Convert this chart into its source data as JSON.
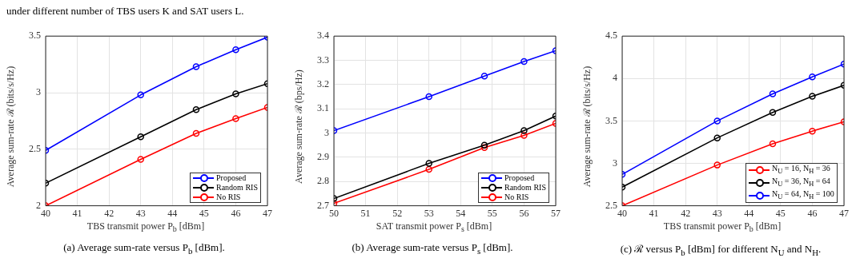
{
  "chart_data": [
    {
      "type": "line",
      "title": "(a) Average sum-rate versus P$_{b}$ [dBm].",
      "xlabel": "TBS transmit power P$_{b}$ [dBm]",
      "ylabel": "Average sum-rate ℛ (bits/s/Hz)",
      "annotations": [
        "under different number of TBS users K and SAT users L."
      ],
      "x": [
        40,
        43,
        44.75,
        46,
        47
      ],
      "xlim": [
        40,
        47
      ],
      "xticks": [
        40,
        41,
        42,
        43,
        44,
        45,
        46,
        47
      ],
      "ylim": [
        2,
        3.5
      ],
      "yticks": [
        2,
        2.5,
        3,
        3.5
      ],
      "grid": true,
      "legend": "bottom right",
      "marker": "circle",
      "line_style": "solid",
      "series": [
        {
          "name": "Proposed",
          "color": "#0000ff",
          "values": [
            2.49,
            2.98,
            3.23,
            3.38,
            3.49
          ]
        },
        {
          "name": "Random RIS",
          "color": "#000000",
          "values": [
            2.2,
            2.61,
            2.85,
            2.99,
            3.08
          ]
        },
        {
          "name": "No RIS",
          "color": "#ff0000",
          "values": [
            2.0,
            2.41,
            2.64,
            2.77,
            2.87
          ]
        }
      ]
    },
    {
      "type": "line",
      "title": "(b) Average sum-rate versus P$_{s}$ [dBm].",
      "xlabel": "SAT transmit power P$_{s}$ [dBm]",
      "ylabel": "Average sum-rate ℛ (bps/Hz)",
      "x": [
        50,
        53,
        54.75,
        56,
        57
      ],
      "xlim": [
        50,
        57
      ],
      "xticks": [
        50,
        51,
        52,
        53,
        54,
        55,
        56,
        57
      ],
      "ylim": [
        2.7,
        3.4
      ],
      "yticks": [
        2.7,
        2.8,
        2.9,
        3,
        3.1,
        3.2,
        3.3,
        3.4
      ],
      "grid": true,
      "legend": "bottom right",
      "marker": "circle",
      "line_style": "solid",
      "series": [
        {
          "name": "Proposed",
          "color": "#0000ff",
          "values": [
            3.01,
            3.15,
            3.235,
            3.295,
            3.34
          ]
        },
        {
          "name": "Random RIS",
          "color": "#000000",
          "values": [
            2.73,
            2.875,
            2.95,
            3.01,
            3.07
          ]
        },
        {
          "name": "No RIS",
          "color": "#ff0000",
          "values": [
            2.71,
            2.85,
            2.94,
            2.99,
            3.04
          ]
        }
      ]
    },
    {
      "type": "line",
      "title": "(c) ℛ versus P$_{b}$ [dBm] for different N$_{U}$ and N$_{H}$.",
      "xlabel": "TBS transmit power P$_{b}$ [dBm]",
      "ylabel": "Average sum-rate ℛ (bits/s/Hz)",
      "x": [
        40,
        43,
        44.75,
        46,
        47
      ],
      "xlim": [
        40,
        47
      ],
      "xticks": [
        40,
        41,
        42,
        43,
        44,
        45,
        46,
        47
      ],
      "ylim": [
        2.5,
        4.5
      ],
      "yticks": [
        2.5,
        3,
        3.5,
        4,
        4.5
      ],
      "grid": true,
      "legend": "bottom right",
      "marker": "circle",
      "line_style": "solid",
      "series": [
        {
          "name": "N$_{U}$ = 16, N$_{H}$ = 36",
          "color": "#ff0000",
          "values": [
            2.5,
            2.98,
            3.23,
            3.38,
            3.49
          ]
        },
        {
          "name": "N$_{U}$ = 36, N$_{H}$ = 64",
          "color": "#000000",
          "values": [
            2.72,
            3.3,
            3.6,
            3.79,
            3.92
          ]
        },
        {
          "name": "N$_{U}$ = 64, N$_{H}$ = 100",
          "color": "#0000ff",
          "values": [
            2.87,
            3.5,
            3.82,
            4.02,
            4.17
          ]
        }
      ]
    }
  ]
}
